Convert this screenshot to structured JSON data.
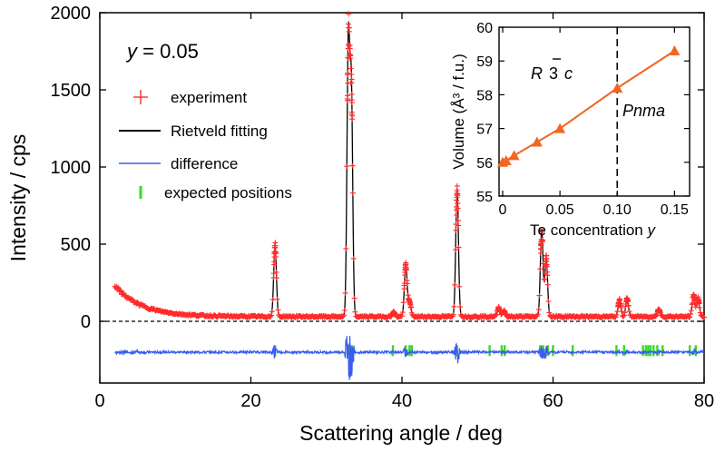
{
  "chart_data": [
    {
      "type": "line",
      "title": "",
      "annotation_prefix": "y",
      "annotation_value": " = 0.05",
      "xlabel": "Scattering angle / deg",
      "ylabel": "Intensity / cps",
      "xlim": [
        0,
        80
      ],
      "ylim": [
        -400,
        2000
      ],
      "xticks": [
        0,
        20,
        40,
        60,
        80
      ],
      "yticks": [
        0,
        500,
        1000,
        1500,
        2000
      ],
      "x_range_data": [
        2,
        80
      ],
      "baseline": 0,
      "background": {
        "a": 200,
        "decay": 3.5,
        "floor": 30
      },
      "peaks": [
        {
          "x": 23.2,
          "height": 460
        },
        {
          "x": 32.9,
          "height": 1760
        },
        {
          "x": 33.3,
          "height": 1450
        },
        {
          "x": 38.9,
          "height": 30
        },
        {
          "x": 40.5,
          "height": 340
        },
        {
          "x": 41.0,
          "height": 100
        },
        {
          "x": 47.3,
          "height": 830
        },
        {
          "x": 52.8,
          "height": 60
        },
        {
          "x": 53.5,
          "height": 40
        },
        {
          "x": 58.5,
          "height": 560
        },
        {
          "x": 59.1,
          "height": 380
        },
        {
          "x": 68.8,
          "height": 110
        },
        {
          "x": 69.8,
          "height": 120
        },
        {
          "x": 74.0,
          "height": 50
        },
        {
          "x": 78.6,
          "height": 140
        },
        {
          "x": 79.2,
          "height": 120
        }
      ],
      "expected_positions": [
        23.2,
        32.8,
        33.0,
        33.2,
        33.4,
        38.8,
        40.5,
        41.0,
        41.3,
        47.3,
        51.6,
        53.2,
        53.6,
        58.3,
        58.7,
        59.3,
        60.0,
        62.6,
        68.4,
        69.4,
        71.9,
        72.3,
        72.6,
        72.9,
        73.3,
        73.8,
        74.5,
        78.1,
        78.9
      ],
      "ticks_y": -190,
      "difference_offset": -200,
      "series": [
        {
          "name": "experiment",
          "color": "#ff2a2a",
          "marker": "+"
        },
        {
          "name": "Rietveld fitting",
          "color": "#000000",
          "marker": "line"
        },
        {
          "name": "difference",
          "color": "#3a5cf0",
          "marker": "line"
        },
        {
          "name": "expected positions",
          "color": "#33dd22",
          "marker": "tick"
        }
      ],
      "legend_placement": "top-left"
    },
    {
      "type": "line",
      "title": "",
      "xlabel_prefix": "Te concentration ",
      "xlabel_var": "y",
      "ylabel": "Volume (Å³ / f.u.)",
      "xlim": [
        0,
        0.16
      ],
      "ylim": [
        55,
        60
      ],
      "xticks": [
        "0",
        "0.05",
        "0.10",
        "0.15"
      ],
      "xtick_values": [
        0,
        0.05,
        0.1,
        0.15
      ],
      "yticks": [
        "55",
        "56",
        "57",
        "58",
        "59",
        "60"
      ],
      "ytick_values": [
        55,
        56,
        57,
        58,
        59,
        60
      ],
      "x": [
        0,
        0.003,
        0.01,
        0.03,
        0.05,
        0.1,
        0.15
      ],
      "values": [
        56.0,
        56.05,
        56.2,
        56.6,
        57.0,
        58.2,
        59.3
      ],
      "color": "#f26522",
      "marker": "triangle",
      "phase_boundary": 0.1,
      "phase_left": "R 3 c",
      "phase_left_parts": [
        "R",
        "3",
        "c"
      ],
      "phase_right": "Pnma",
      "legend_placement": "none"
    }
  ]
}
